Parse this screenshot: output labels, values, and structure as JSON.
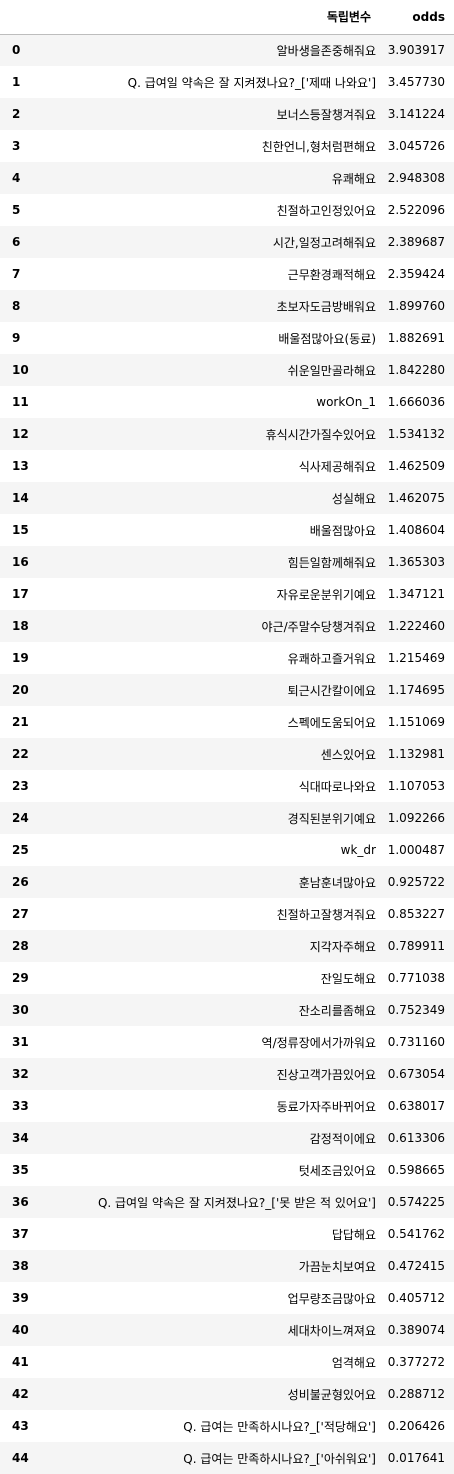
{
  "table": {
    "columns": [
      "",
      "독립변수",
      "odds"
    ],
    "rows": [
      {
        "index": "0",
        "var": "알바생을존중해줘요",
        "odds": "3.903917"
      },
      {
        "index": "1",
        "var": "Q. 급여일 약속은 잘 지켜졌나요?_['제때 나와요']",
        "odds": "3.457730"
      },
      {
        "index": "2",
        "var": "보너스등잘챙겨줘요",
        "odds": "3.141224"
      },
      {
        "index": "3",
        "var": "친한언니,형처럼편해요",
        "odds": "3.045726"
      },
      {
        "index": "4",
        "var": "유쾌해요",
        "odds": "2.948308"
      },
      {
        "index": "5",
        "var": "친절하고인정있어요",
        "odds": "2.522096"
      },
      {
        "index": "6",
        "var": "시간,일정고려해줘요",
        "odds": "2.389687"
      },
      {
        "index": "7",
        "var": "근무환경쾌적해요",
        "odds": "2.359424"
      },
      {
        "index": "8",
        "var": "초보자도금방배워요",
        "odds": "1.899760"
      },
      {
        "index": "9",
        "var": "배울점많아요(동료)",
        "odds": "1.882691"
      },
      {
        "index": "10",
        "var": "쉬운일만골라해요",
        "odds": "1.842280"
      },
      {
        "index": "11",
        "var": "workOn_1",
        "odds": "1.666036"
      },
      {
        "index": "12",
        "var": "휴식시간가질수있어요",
        "odds": "1.534132"
      },
      {
        "index": "13",
        "var": "식사제공해줘요",
        "odds": "1.462509"
      },
      {
        "index": "14",
        "var": "성실해요",
        "odds": "1.462075"
      },
      {
        "index": "15",
        "var": "배울점많아요",
        "odds": "1.408604"
      },
      {
        "index": "16",
        "var": "힘든일함께해줘요",
        "odds": "1.365303"
      },
      {
        "index": "17",
        "var": "자유로운분위기예요",
        "odds": "1.347121"
      },
      {
        "index": "18",
        "var": "야근/주말수당챙겨줘요",
        "odds": "1.222460"
      },
      {
        "index": "19",
        "var": "유쾌하고즐거워요",
        "odds": "1.215469"
      },
      {
        "index": "20",
        "var": "퇴근시간칼이에요",
        "odds": "1.174695"
      },
      {
        "index": "21",
        "var": "스펙에도움되어요",
        "odds": "1.151069"
      },
      {
        "index": "22",
        "var": "센스있어요",
        "odds": "1.132981"
      },
      {
        "index": "23",
        "var": "식대따로나와요",
        "odds": "1.107053"
      },
      {
        "index": "24",
        "var": "경직된분위기예요",
        "odds": "1.092266"
      },
      {
        "index": "25",
        "var": "wk_dr",
        "odds": "1.000487"
      },
      {
        "index": "26",
        "var": "훈남훈녀많아요",
        "odds": "0.925722"
      },
      {
        "index": "27",
        "var": "친절하고잘챙겨줘요",
        "odds": "0.853227"
      },
      {
        "index": "28",
        "var": "지각자주해요",
        "odds": "0.789911"
      },
      {
        "index": "29",
        "var": "잔일도해요",
        "odds": "0.771038"
      },
      {
        "index": "30",
        "var": "잔소리를좀해요",
        "odds": "0.752349"
      },
      {
        "index": "31",
        "var": "역/정류장에서가까워요",
        "odds": "0.731160"
      },
      {
        "index": "32",
        "var": "진상고객가끔있어요",
        "odds": "0.673054"
      },
      {
        "index": "33",
        "var": "동료가자주바뀌어요",
        "odds": "0.638017"
      },
      {
        "index": "34",
        "var": "감정적이에요",
        "odds": "0.613306"
      },
      {
        "index": "35",
        "var": "텃세조금있어요",
        "odds": "0.598665"
      },
      {
        "index": "36",
        "var": "Q. 급여일 약속은 잘 지켜졌나요?_['못 받은 적 있어요']",
        "odds": "0.574225"
      },
      {
        "index": "37",
        "var": "답답해요",
        "odds": "0.541762"
      },
      {
        "index": "38",
        "var": "가끔눈치보여요",
        "odds": "0.472415"
      },
      {
        "index": "39",
        "var": "업무량조금많아요",
        "odds": "0.405712"
      },
      {
        "index": "40",
        "var": "세대차이느껴져요",
        "odds": "0.389074"
      },
      {
        "index": "41",
        "var": "엄격해요",
        "odds": "0.377272"
      },
      {
        "index": "42",
        "var": "성비불균형있어요",
        "odds": "0.288712"
      },
      {
        "index": "43",
        "var": "Q. 급여는 만족하시나요?_['적당해요']",
        "odds": "0.206426"
      },
      {
        "index": "44",
        "var": "Q. 급여는 만족하시나요?_['아쉬워요']",
        "odds": "0.017641"
      }
    ]
  }
}
